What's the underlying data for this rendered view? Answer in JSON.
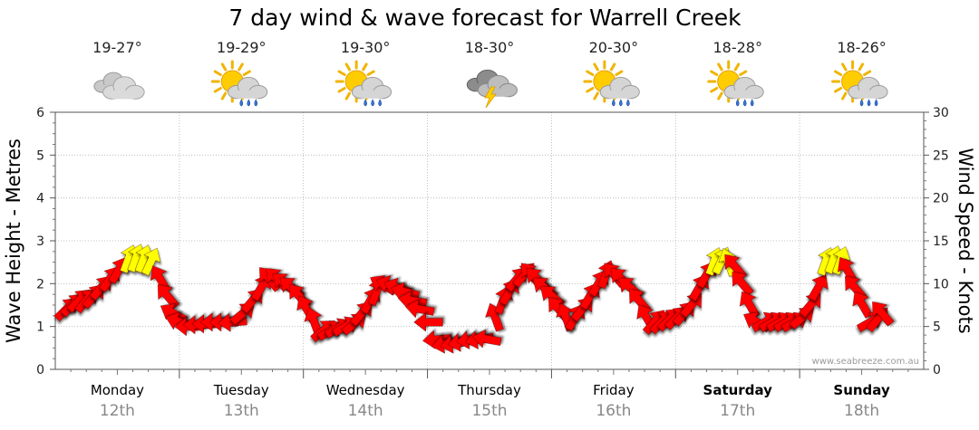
{
  "chart_data": {
    "type": "line",
    "title": "7 day wind & wave forecast for Warrell Creek",
    "ylabel_left": "Wave Height - Metres",
    "ylabel_right": "Wind Speed - Knots",
    "ylim_left": [
      0,
      6
    ],
    "ylim_right": [
      0,
      30
    ],
    "yticks_left": [
      "0",
      "1",
      "2",
      "3",
      "4",
      "5",
      "6"
    ],
    "yticks_right": [
      "0",
      "5",
      "10",
      "15",
      "20",
      "25",
      "30"
    ],
    "grid": true,
    "days": [
      {
        "name": "Monday",
        "date": "12th",
        "temp": "19-27°",
        "icon": "cloudy-icon",
        "bold": false
      },
      {
        "name": "Tuesday",
        "date": "13th",
        "temp": "19-29°",
        "icon": "sun-cloud-rain-icon",
        "bold": false
      },
      {
        "name": "Wednesday",
        "date": "14th",
        "temp": "19-30°",
        "icon": "sun-cloud-rain-icon",
        "bold": false
      },
      {
        "name": "Thursday",
        "date": "15th",
        "temp": "18-30°",
        "icon": "storm-icon",
        "bold": false
      },
      {
        "name": "Friday",
        "date": "16th",
        "temp": "20-30°",
        "icon": "sun-cloud-rain-icon",
        "bold": false
      },
      {
        "name": "Saturday",
        "date": "17th",
        "temp": "18-28°",
        "icon": "sun-cloud-rain-icon",
        "bold": true
      },
      {
        "name": "Sunday",
        "date": "18th",
        "temp": "18-26°",
        "icon": "sun-cloud-rain-icon",
        "bold": true
      }
    ],
    "series": [
      {
        "unit": "knots",
        "color": "#ff0000",
        "highlight_color": "#ffff00",
        "highlight_above": 12,
        "points": [
          {
            "day": 0.0,
            "speed": 7,
            "dir": 45
          },
          {
            "day": 0.05,
            "speed": 7.5,
            "dir": 45
          },
          {
            "day": 0.1,
            "speed": 8,
            "dir": 45
          },
          {
            "day": 0.16,
            "speed": 8,
            "dir": 40
          },
          {
            "day": 0.22,
            "speed": 8.5,
            "dir": 40
          },
          {
            "day": 0.28,
            "speed": 9.5,
            "dir": 40
          },
          {
            "day": 0.35,
            "speed": 10.5,
            "dir": 35
          },
          {
            "day": 0.42,
            "speed": 11.5,
            "dir": 30
          },
          {
            "day": 0.5,
            "speed": 12.8,
            "dir": 20
          },
          {
            "day": 0.56,
            "speed": 12.9,
            "dir": 20
          },
          {
            "day": 0.62,
            "speed": 12.8,
            "dir": 20
          },
          {
            "day": 0.68,
            "speed": 12.5,
            "dir": 25
          },
          {
            "day": 0.76,
            "speed": 10.5,
            "dir": 330
          },
          {
            "day": 0.82,
            "speed": 8.5,
            "dir": 320
          },
          {
            "day": 0.87,
            "speed": 6.5,
            "dir": 300
          },
          {
            "day": 0.92,
            "speed": 5.5,
            "dir": 290
          },
          {
            "day": 1.0,
            "speed": 5,
            "dir": 270
          },
          {
            "day": 1.07,
            "speed": 5.2,
            "dir": 270
          },
          {
            "day": 1.14,
            "speed": 5.3,
            "dir": 270
          },
          {
            "day": 1.21,
            "speed": 5.5,
            "dir": 270
          },
          {
            "day": 1.28,
            "speed": 5.5,
            "dir": 270
          },
          {
            "day": 1.35,
            "speed": 5.5,
            "dir": 265
          },
          {
            "day": 1.42,
            "speed": 6.5,
            "dir": 50
          },
          {
            "day": 1.5,
            "speed": 8,
            "dir": 40
          },
          {
            "day": 1.57,
            "speed": 9.5,
            "dir": 30
          },
          {
            "day": 1.64,
            "speed": 10.5,
            "dir": 320
          },
          {
            "day": 1.7,
            "speed": 10.5,
            "dir": 315
          },
          {
            "day": 1.76,
            "speed": 10,
            "dir": 310
          },
          {
            "day": 1.82,
            "speed": 9.5,
            "dir": 310
          },
          {
            "day": 1.88,
            "speed": 8.5,
            "dir": 320
          },
          {
            "day": 1.94,
            "speed": 7,
            "dir": 330
          },
          {
            "day": 2.0,
            "speed": 5.5,
            "dir": 340
          },
          {
            "day": 2.07,
            "speed": 4.5,
            "dir": 50
          },
          {
            "day": 2.13,
            "speed": 4.5,
            "dir": 60
          },
          {
            "day": 2.19,
            "speed": 4.8,
            "dir": 60
          },
          {
            "day": 2.25,
            "speed": 5,
            "dir": 60
          },
          {
            "day": 2.32,
            "speed": 5.3,
            "dir": 50
          },
          {
            "day": 2.38,
            "speed": 6.5,
            "dir": 40
          },
          {
            "day": 2.45,
            "speed": 8,
            "dir": 30
          },
          {
            "day": 2.5,
            "speed": 9,
            "dir": 20
          },
          {
            "day": 2.56,
            "speed": 9.8,
            "dir": 300
          },
          {
            "day": 2.62,
            "speed": 9.8,
            "dir": 290
          },
          {
            "day": 2.68,
            "speed": 9.5,
            "dir": 290
          },
          {
            "day": 2.74,
            "speed": 9,
            "dir": 285
          },
          {
            "day": 2.8,
            "speed": 8,
            "dir": 280
          },
          {
            "day": 2.86,
            "speed": 7,
            "dir": 280
          },
          {
            "day": 2.93,
            "speed": 5.5,
            "dir": 270
          },
          {
            "day": 3.0,
            "speed": 3.5,
            "dir": 265
          },
          {
            "day": 3.07,
            "speed": 3,
            "dir": 260
          },
          {
            "day": 3.14,
            "speed": 3,
            "dir": 260
          },
          {
            "day": 3.2,
            "speed": 3.2,
            "dir": 260
          },
          {
            "day": 3.27,
            "speed": 3.5,
            "dir": 260
          },
          {
            "day": 3.34,
            "speed": 3.5,
            "dir": 260
          },
          {
            "day": 3.4,
            "speed": 3.5,
            "dir": 280
          },
          {
            "day": 3.46,
            "speed": 6,
            "dir": 340
          },
          {
            "day": 3.52,
            "speed": 8,
            "dir": 20
          },
          {
            "day": 3.57,
            "speed": 9,
            "dir": 30
          },
          {
            "day": 3.63,
            "speed": 10.5,
            "dir": 40
          },
          {
            "day": 3.69,
            "speed": 11,
            "dir": 40
          },
          {
            "day": 3.75,
            "speed": 11,
            "dir": 320
          },
          {
            "day": 3.8,
            "speed": 10.5,
            "dir": 315
          },
          {
            "day": 3.86,
            "speed": 9.5,
            "dir": 310
          },
          {
            "day": 3.92,
            "speed": 8.5,
            "dir": 310
          },
          {
            "day": 3.97,
            "speed": 7,
            "dir": 320
          },
          {
            "day": 4.03,
            "speed": 6,
            "dir": 340
          },
          {
            "day": 4.1,
            "speed": 6,
            "dir": 30
          },
          {
            "day": 4.16,
            "speed": 7,
            "dir": 40
          },
          {
            "day": 4.22,
            "speed": 8.5,
            "dir": 30
          },
          {
            "day": 4.29,
            "speed": 10,
            "dir": 30
          },
          {
            "day": 4.35,
            "speed": 11,
            "dir": 20
          },
          {
            "day": 4.42,
            "speed": 11,
            "dir": 320
          },
          {
            "day": 4.48,
            "speed": 10.5,
            "dir": 315
          },
          {
            "day": 4.55,
            "speed": 9.5,
            "dir": 310
          },
          {
            "day": 4.62,
            "speed": 8,
            "dir": 320
          },
          {
            "day": 4.68,
            "speed": 6,
            "dir": 330
          },
          {
            "day": 4.74,
            "speed": 5.5,
            "dir": 40
          },
          {
            "day": 4.8,
            "speed": 5.5,
            "dir": 45
          },
          {
            "day": 4.86,
            "speed": 5.8,
            "dir": 45
          },
          {
            "day": 4.92,
            "speed": 6,
            "dir": 45
          },
          {
            "day": 4.98,
            "speed": 6.5,
            "dir": 40
          },
          {
            "day": 5.04,
            "speed": 7.5,
            "dir": 40
          },
          {
            "day": 5.1,
            "speed": 9.5,
            "dir": 30
          },
          {
            "day": 5.16,
            "speed": 11,
            "dir": 30
          },
          {
            "day": 5.22,
            "speed": 12.5,
            "dir": 20
          },
          {
            "day": 5.28,
            "speed": 12.6,
            "dir": 25
          },
          {
            "day": 5.34,
            "speed": 12.4,
            "dir": 340
          },
          {
            "day": 5.39,
            "speed": 12,
            "dir": 320
          },
          {
            "day": 5.45,
            "speed": 10,
            "dir": 320
          },
          {
            "day": 5.51,
            "speed": 7.5,
            "dir": 330
          },
          {
            "day": 5.57,
            "speed": 5.5,
            "dir": 300
          },
          {
            "day": 5.63,
            "speed": 5.5,
            "dir": 60
          },
          {
            "day": 5.69,
            "speed": 5.5,
            "dir": 60
          },
          {
            "day": 5.75,
            "speed": 5.5,
            "dir": 60
          },
          {
            "day": 5.81,
            "speed": 5.5,
            "dir": 60
          },
          {
            "day": 5.87,
            "speed": 5.5,
            "dir": 60
          },
          {
            "day": 5.93,
            "speed": 6,
            "dir": 50
          },
          {
            "day": 6.0,
            "speed": 7.5,
            "dir": 40
          },
          {
            "day": 6.06,
            "speed": 9.5,
            "dir": 30
          },
          {
            "day": 6.12,
            "speed": 12.5,
            "dir": 20
          },
          {
            "day": 6.18,
            "speed": 12.7,
            "dir": 20
          },
          {
            "day": 6.24,
            "speed": 12.6,
            "dir": 20
          },
          {
            "day": 6.3,
            "speed": 11.5,
            "dir": 330
          },
          {
            "day": 6.36,
            "speed": 9.5,
            "dir": 320
          },
          {
            "day": 6.42,
            "speed": 7.5,
            "dir": 330
          },
          {
            "day": 6.48,
            "speed": 5.5,
            "dir": 60
          },
          {
            "day": 6.54,
            "speed": 5.8,
            "dir": 40
          },
          {
            "day": 6.58,
            "speed": 6.5,
            "dir": 320
          }
        ]
      }
    ]
  },
  "footer": {
    "credit": "www.seabreeze.com.au"
  }
}
